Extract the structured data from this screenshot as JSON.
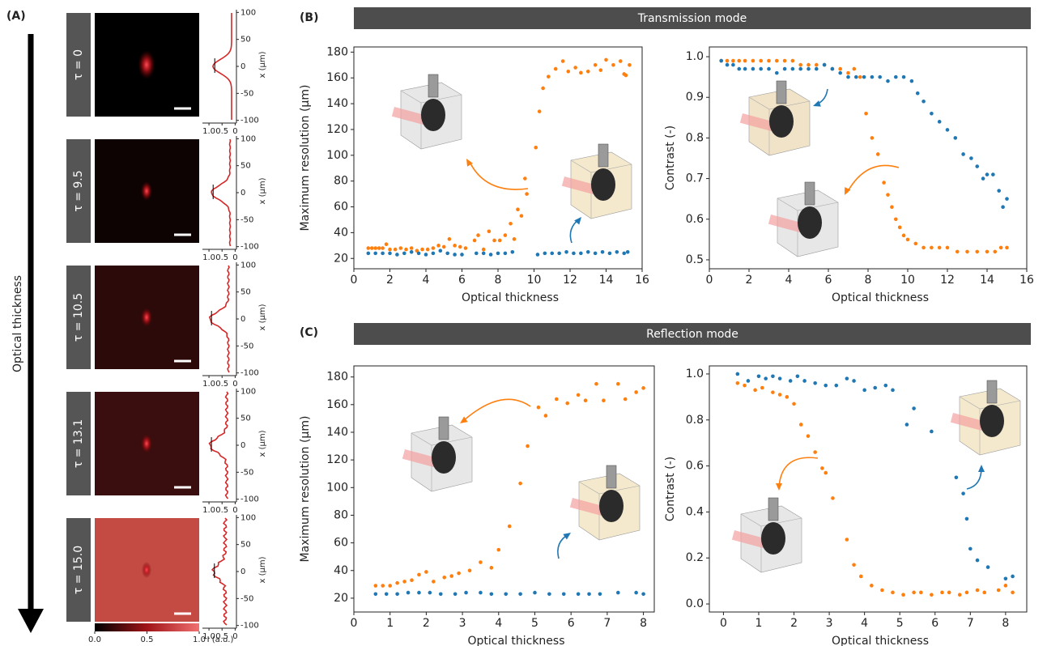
{
  "figure_label_a": "(A)",
  "panels": [
    {
      "label": "(B)",
      "title": "Transmission mode"
    },
    {
      "label": "(C)",
      "title": "Reflection mode"
    }
  ],
  "panel_a": {
    "axis_label": "Optical thickness",
    "tau_labels": [
      "τ = 0",
      "τ = 9.5",
      "τ = 10.5",
      "τ = 13.1",
      "τ = 15.0"
    ],
    "profile_ylabel": "x (μm)",
    "profile_ylim": [
      -105,
      105
    ],
    "profile_yticks": [
      100,
      50,
      0,
      -50,
      -100
    ],
    "profile_xlim": [
      1.25,
      -0.05
    ],
    "profile_xticks": [
      {
        "value": 1,
        "label": "1.0"
      },
      0.5,
      0
    ],
    "colorbar_xlim": [
      0,
      1
    ],
    "colorbar_ticks": [
      {
        "value": 0,
        "label": "0.0"
      },
      0.5,
      {
        "value": 1,
        "label": "1.0"
      }
    ],
    "colorbar_xlabel": "I (a.u.)"
  },
  "chart_data": [
    {
      "type": "scatter",
      "xlabel": "Optical thickness",
      "ylabel": "Maximum resolution (μm)",
      "xlim": [
        0,
        16
      ],
      "ylim": [
        12,
        184
      ],
      "xticks": [
        0,
        2,
        4,
        6,
        8,
        10,
        12,
        14,
        16
      ],
      "yticks": [
        20,
        40,
        60,
        80,
        100,
        120,
        140,
        160,
        180
      ],
      "series": [
        {
          "color": "#ff7f0e",
          "x": [
            0.8,
            1.0,
            1.2,
            1.4,
            1.6,
            1.8,
            2.0,
            2.3,
            2.6,
            2.9,
            3.2,
            3.5,
            3.8,
            4.1,
            4.4,
            4.7,
            5.0,
            5.3,
            5.6,
            5.9,
            6.2,
            6.7,
            6.9,
            7.2,
            7.5,
            7.8,
            8.1,
            8.4,
            8.7,
            8.9,
            9.1,
            9.3,
            9.5,
            9.6,
            10.1,
            10.3,
            10.5,
            10.8,
            11.2,
            11.6,
            11.9,
            12.3,
            12.6,
            13.0,
            13.4,
            13.7,
            14.0,
            14.4,
            14.8,
            15.0,
            15.1,
            15.3
          ],
          "values": [
            28,
            28,
            28,
            28,
            28,
            31,
            27,
            27,
            28,
            27,
            28,
            26,
            27,
            27,
            28,
            30,
            29,
            35,
            30,
            29,
            28,
            34,
            38,
            27,
            41,
            34,
            34,
            38,
            47,
            35,
            58,
            53,
            82,
            70,
            106,
            134,
            152,
            161,
            167,
            173,
            165,
            168,
            164,
            165,
            170,
            166,
            174,
            170,
            173,
            163,
            162,
            170
          ]
        },
        {
          "color": "#1f77b4",
          "x": [
            0.8,
            1.2,
            1.6,
            2.0,
            2.4,
            2.8,
            3.2,
            3.6,
            4.0,
            4.4,
            4.8,
            5.2,
            5.6,
            6.0,
            6.8,
            7.2,
            7.6,
            8.0,
            8.4,
            8.8,
            10.2,
            10.6,
            11.0,
            11.4,
            11.8,
            12.2,
            12.6,
            13.0,
            13.4,
            13.8,
            14.2,
            14.6,
            15.0,
            15.2
          ],
          "values": [
            24,
            24,
            24,
            24,
            23,
            24,
            25,
            24,
            23,
            24,
            26,
            24,
            23,
            23,
            24,
            24,
            23,
            24,
            24,
            25,
            23,
            24,
            24,
            24,
            25,
            24,
            24,
            25,
            24,
            25,
            24,
            25,
            24,
            25
          ]
        }
      ]
    },
    {
      "type": "scatter",
      "xlabel": "Optical thickness",
      "ylabel": "Contrast (-)",
      "xlim": [
        0,
        16
      ],
      "ylim": [
        0.478,
        1.024
      ],
      "xticks": [
        0,
        2,
        4,
        6,
        8,
        10,
        12,
        14,
        16
      ],
      "yticks": [
        0.5,
        0.6,
        0.7,
        0.8,
        0.9,
        {
          "value": 1,
          "label": "1.0"
        }
      ],
      "series": [
        {
          "color": "#ff7f0e",
          "x": [
            0.6,
            0.9,
            1.2,
            1.5,
            1.8,
            2.2,
            2.6,
            3.0,
            3.4,
            3.8,
            4.2,
            4.6,
            5.0,
            5.4,
            5.8,
            6.2,
            6.6,
            7.0,
            7.3,
            7.6,
            7.9,
            8.2,
            8.5,
            8.8,
            9.0,
            9.2,
            9.4,
            9.6,
            9.8,
            10.0,
            10.4,
            10.8,
            11.2,
            11.6,
            12.0,
            12.5,
            13.0,
            13.5,
            14.0,
            14.4,
            14.7,
            15.0
          ],
          "values": [
            0.99,
            0.99,
            0.99,
            0.99,
            0.99,
            0.99,
            0.99,
            0.99,
            0.99,
            0.99,
            0.99,
            0.98,
            0.98,
            0.98,
            0.98,
            0.97,
            0.97,
            0.96,
            0.97,
            0.95,
            0.86,
            0.8,
            0.76,
            0.69,
            0.66,
            0.63,
            0.6,
            0.58,
            0.56,
            0.55,
            0.54,
            0.53,
            0.53,
            0.53,
            0.53,
            0.52,
            0.52,
            0.52,
            0.52,
            0.52,
            0.53,
            0.53
          ]
        },
        {
          "color": "#1f77b4",
          "x": [
            0.6,
            0.9,
            1.2,
            1.5,
            1.8,
            2.2,
            2.6,
            3.0,
            3.4,
            3.8,
            4.2,
            4.6,
            5.0,
            5.4,
            5.8,
            6.2,
            6.6,
            7.0,
            7.4,
            7.8,
            8.2,
            8.6,
            9.0,
            9.4,
            9.8,
            10.2,
            10.5,
            10.8,
            11.2,
            11.6,
            12.0,
            12.4,
            12.8,
            13.2,
            13.5,
            13.8,
            14.0,
            14.3,
            14.6,
            14.8,
            15.0
          ],
          "values": [
            0.99,
            0.98,
            0.98,
            0.97,
            0.97,
            0.97,
            0.97,
            0.97,
            0.96,
            0.97,
            0.97,
            0.97,
            0.97,
            0.97,
            0.98,
            0.97,
            0.96,
            0.95,
            0.95,
            0.95,
            0.95,
            0.95,
            0.94,
            0.95,
            0.95,
            0.94,
            0.91,
            0.89,
            0.86,
            0.84,
            0.82,
            0.8,
            0.76,
            0.75,
            0.73,
            0.7,
            0.71,
            0.71,
            0.67,
            0.63,
            0.65
          ]
        }
      ]
    },
    {
      "type": "scatter",
      "xlabel": "Optical thickness",
      "ylabel": "Maximum resolution (μm)",
      "xlim": [
        0,
        8.3
      ],
      "ylim": [
        10,
        188
      ],
      "xticks": [
        0,
        1,
        2,
        3,
        4,
        5,
        6,
        7,
        8
      ],
      "yticks": [
        20,
        40,
        60,
        80,
        100,
        120,
        140,
        160,
        180
      ],
      "series": [
        {
          "color": "#ff7f0e",
          "x": [
            0.6,
            0.8,
            1.0,
            1.2,
            1.4,
            1.6,
            1.8,
            2.0,
            2.2,
            2.5,
            2.7,
            2.9,
            3.2,
            3.5,
            3.8,
            4.0,
            4.3,
            4.6,
            4.8,
            5.1,
            5.3,
            5.6,
            5.9,
            6.2,
            6.4,
            6.7,
            6.9,
            7.3,
            7.5,
            7.8,
            8.0
          ],
          "values": [
            29,
            29,
            29,
            31,
            32,
            33,
            37,
            39,
            32,
            35,
            36,
            38,
            40,
            46,
            42,
            55,
            72,
            103,
            130,
            158,
            152,
            164,
            161,
            167,
            163,
            175,
            163,
            175,
            164,
            169,
            172
          ]
        },
        {
          "color": "#1f77b4",
          "x": [
            0.6,
            0.9,
            1.2,
            1.5,
            1.8,
            2.1,
            2.4,
            2.8,
            3.1,
            3.5,
            3.8,
            4.2,
            4.6,
            5.0,
            5.4,
            5.8,
            6.2,
            6.5,
            6.8,
            7.3,
            7.8,
            8.0
          ],
          "values": [
            23,
            23,
            23,
            24,
            24,
            24,
            23,
            23,
            24,
            24,
            23,
            23,
            23,
            24,
            23,
            23,
            23,
            23,
            23,
            24,
            24,
            23
          ]
        }
      ]
    },
    {
      "type": "scatter",
      "xlabel": "Optical thickness",
      "ylabel": "Contrast (-)",
      "xlim": [
        -0.4,
        8.6
      ],
      "ylim": [
        -0.035,
        1.035
      ],
      "xticks": [
        0,
        1,
        2,
        3,
        4,
        5,
        6,
        7,
        8
      ],
      "yticks": [
        {
          "value": 0,
          "label": "0.0"
        },
        0.2,
        0.4,
        0.6,
        0.8,
        {
          "value": 1,
          "label": "1.0"
        }
      ],
      "series": [
        {
          "color": "#ff7f0e",
          "x": [
            0.4,
            0.6,
            0.9,
            1.1,
            1.4,
            1.6,
            1.8,
            2.0,
            2.2,
            2.4,
            2.6,
            2.8,
            2.9,
            3.1,
            3.5,
            3.7,
            3.9,
            4.2,
            4.5,
            4.8,
            5.1,
            5.4,
            5.6,
            5.9,
            6.2,
            6.4,
            6.7,
            6.9,
            7.2,
            7.4,
            7.8,
            8.0,
            8.2
          ],
          "values": [
            0.96,
            0.95,
            0.93,
            0.94,
            0.92,
            0.91,
            0.9,
            0.87,
            0.78,
            0.73,
            0.66,
            0.59,
            0.57,
            0.46,
            0.28,
            0.17,
            0.12,
            0.08,
            0.06,
            0.05,
            0.04,
            0.05,
            0.05,
            0.04,
            0.05,
            0.05,
            0.04,
            0.05,
            0.06,
            0.05,
            0.06,
            0.08,
            0.05
          ]
        },
        {
          "color": "#1f77b4",
          "x": [
            0.4,
            0.7,
            1.0,
            1.2,
            1.4,
            1.6,
            1.9,
            2.1,
            2.3,
            2.6,
            2.9,
            3.2,
            3.5,
            3.7,
            4.0,
            4.3,
            4.6,
            4.8,
            5.2,
            5.4,
            5.9,
            6.6,
            6.8,
            6.9,
            7.0,
            7.2,
            7.5,
            8.0,
            8.2
          ],
          "values": [
            1.0,
            0.97,
            0.99,
            0.98,
            0.99,
            0.98,
            0.97,
            0.99,
            0.97,
            0.96,
            0.95,
            0.95,
            0.98,
            0.97,
            0.93,
            0.94,
            0.95,
            0.93,
            0.78,
            0.85,
            0.75,
            0.55,
            0.48,
            0.37,
            0.24,
            0.19,
            0.16,
            0.11,
            0.12
          ]
        }
      ]
    }
  ]
}
